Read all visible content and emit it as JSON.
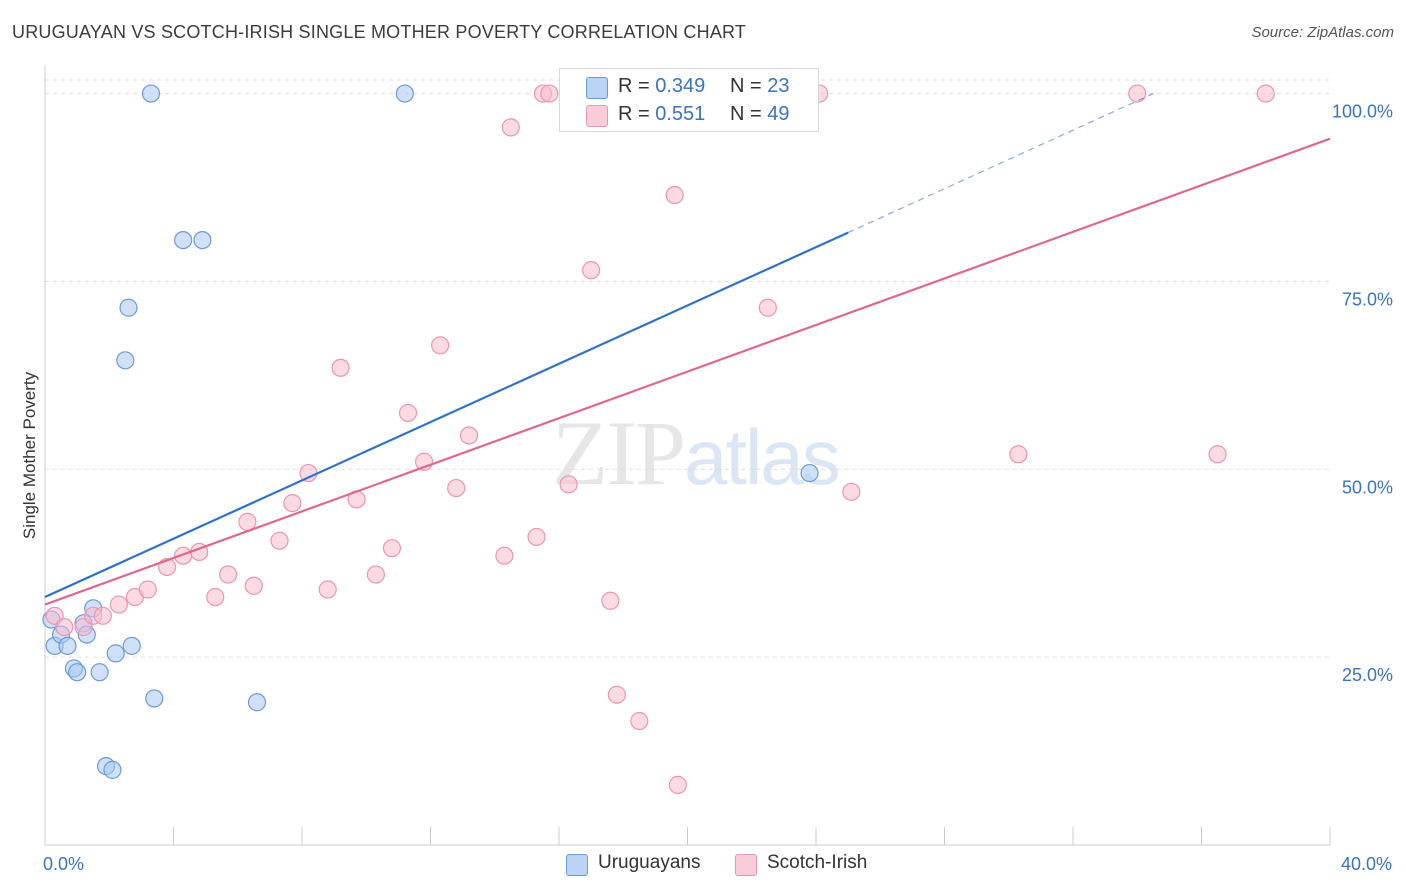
{
  "header": {
    "title": "URUGUAYAN VS SCOTCH-IRISH SINGLE MOTHER POVERTY CORRELATION CHART",
    "source": "Source: ZipAtlas.com"
  },
  "watermark": {
    "zip": "ZIP",
    "atlas": "atlas"
  },
  "legend": {
    "items": [
      {
        "r_label": "R =",
        "r_value": "0.349",
        "n_label": "N =",
        "n_value": "23"
      },
      {
        "r_label": "R =",
        "r_value": "0.551",
        "n_label": "N =",
        "n_value": "49"
      }
    ]
  },
  "bottom_legend": {
    "series1": "Uruguayans",
    "series2": "Scotch-Irish"
  },
  "colors": {
    "uruguayan_fill": "#a9c8f0",
    "uruguayan_stroke": "#6a9ad8",
    "uruguayan_line": "#2e72c8",
    "scotch_fill": "#f7bccd",
    "scotch_stroke": "#e996b0",
    "scotch_line": "#e06890",
    "axis_label": "#3a72c4",
    "grid": "#dcdcdc"
  },
  "chart_data": {
    "type": "scatter",
    "title": "URUGUAYAN VS SCOTCH-IRISH SINGLE MOTHER POVERTY CORRELATION CHART",
    "xlabel": "",
    "ylabel": "Single Mother Poverty",
    "xlim": [
      0,
      40
    ],
    "ylim": [
      0,
      105
    ],
    "x_tick_labels": [
      "0.0%",
      "40.0%"
    ],
    "y_tick_labels": [
      "25.0%",
      "50.0%",
      "75.0%",
      "100.0%"
    ],
    "y_ticks": [
      25,
      50,
      75,
      100
    ],
    "grid": true,
    "legend_position": "top-center",
    "series": [
      {
        "name": "Uruguayans",
        "points": [
          [
            0.2,
            30.0
          ],
          [
            0.3,
            26.5
          ],
          [
            0.5,
            28.0
          ],
          [
            0.7,
            26.5
          ],
          [
            0.9,
            23.5
          ],
          [
            1.0,
            23.0
          ],
          [
            1.2,
            29.5
          ],
          [
            1.3,
            28.0
          ],
          [
            1.5,
            31.5
          ],
          [
            1.7,
            23.0
          ],
          [
            1.9,
            10.5
          ],
          [
            2.1,
            10.0
          ],
          [
            2.2,
            25.5
          ],
          [
            2.7,
            26.5
          ],
          [
            2.6,
            71.5
          ],
          [
            2.5,
            64.5
          ],
          [
            3.3,
            100.0
          ],
          [
            3.4,
            19.5
          ],
          [
            4.3,
            80.5
          ],
          [
            4.9,
            80.5
          ],
          [
            6.6,
            19.0
          ],
          [
            11.2,
            100.0
          ],
          [
            23.8,
            49.5
          ]
        ],
        "trend": {
          "x": [
            0,
            25
          ],
          "y": [
            33,
            81.5
          ],
          "extension": {
            "x": [
              25,
              34.5
            ],
            "y": [
              81.5,
              100.0
            ]
          }
        }
      },
      {
        "name": "Scotch-Irish",
        "points": [
          [
            0.3,
            30.5
          ],
          [
            0.6,
            29.0
          ],
          [
            1.2,
            29.0
          ],
          [
            1.5,
            30.5
          ],
          [
            1.8,
            30.5
          ],
          [
            2.3,
            32.0
          ],
          [
            2.8,
            33.0
          ],
          [
            3.2,
            34.0
          ],
          [
            3.8,
            37.0
          ],
          [
            4.3,
            38.5
          ],
          [
            4.8,
            39.0
          ],
          [
            5.3,
            33.0
          ],
          [
            5.7,
            36.0
          ],
          [
            6.3,
            43.0
          ],
          [
            6.5,
            34.5
          ],
          [
            7.3,
            40.5
          ],
          [
            7.7,
            45.5
          ],
          [
            8.2,
            49.5
          ],
          [
            8.8,
            34.0
          ],
          [
            9.2,
            63.5
          ],
          [
            9.7,
            46.0
          ],
          [
            10.3,
            36.0
          ],
          [
            10.8,
            39.5
          ],
          [
            11.3,
            57.5
          ],
          [
            11.8,
            51.0
          ],
          [
            12.3,
            66.5
          ],
          [
            12.8,
            47.5
          ],
          [
            13.2,
            54.5
          ],
          [
            14.3,
            38.5
          ],
          [
            14.5,
            95.5
          ],
          [
            15.3,
            41.0
          ],
          [
            15.5,
            100.0
          ],
          [
            15.7,
            100.0
          ],
          [
            16.3,
            48.0
          ],
          [
            17.0,
            76.5
          ],
          [
            17.6,
            32.5
          ],
          [
            17.8,
            20.0
          ],
          [
            18.5,
            16.5
          ],
          [
            18.9,
            100.0
          ],
          [
            19.6,
            86.5
          ],
          [
            19.7,
            8.0
          ],
          [
            20.7,
            100.0
          ],
          [
            22.5,
            71.5
          ],
          [
            24.1,
            100.0
          ],
          [
            25.1,
            47.0
          ],
          [
            30.3,
            52.0
          ],
          [
            34.0,
            100.0
          ],
          [
            36.5,
            52.0
          ],
          [
            38.0,
            100.0
          ]
        ],
        "trend": {
          "x": [
            0,
            40
          ],
          "y": [
            32,
            94
          ]
        }
      }
    ]
  }
}
